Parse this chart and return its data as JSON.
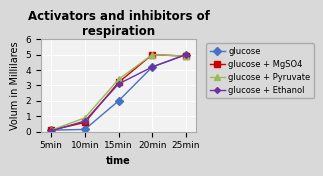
{
  "title": "Activators and inhibitors of\nrespiration",
  "xlabel": "time",
  "ylabel": "Volum in Millilares",
  "x_labels": [
    "5min",
    "10min",
    "15min",
    "20min",
    "25min"
  ],
  "x_values": [
    1,
    2,
    3,
    4,
    5
  ],
  "series": [
    {
      "label": "glucose",
      "color": "#4472C4",
      "marker": "D",
      "markersize": 4,
      "values": [
        0.1,
        0.15,
        2.0,
        4.2,
        5.0
      ]
    },
    {
      "label": "glucose + MgSO4",
      "color": "#CC0000",
      "marker": "s",
      "markersize": 4,
      "values": [
        0.1,
        0.6,
        3.2,
        5.0,
        4.9
      ]
    },
    {
      "label": "glucose + Pyruvate",
      "color": "#9BBB59",
      "marker": "^",
      "markersize": 4,
      "values": [
        0.1,
        0.9,
        3.4,
        5.0,
        4.9
      ]
    },
    {
      "label": "glucose + Ethanol",
      "color": "#7030A0",
      "marker": "D",
      "markersize": 3,
      "values": [
        0.05,
        0.7,
        3.1,
        4.2,
        5.0
      ]
    }
  ],
  "ylim": [
    0,
    6
  ],
  "yticks": [
    0,
    1,
    2,
    3,
    4,
    5,
    6
  ],
  "fig_bg": "#d9d9d9",
  "plot_bg": "#f2f2f2",
  "title_fontsize": 8.5,
  "axis_label_fontsize": 7,
  "tick_fontsize": 6.5,
  "legend_fontsize": 6
}
